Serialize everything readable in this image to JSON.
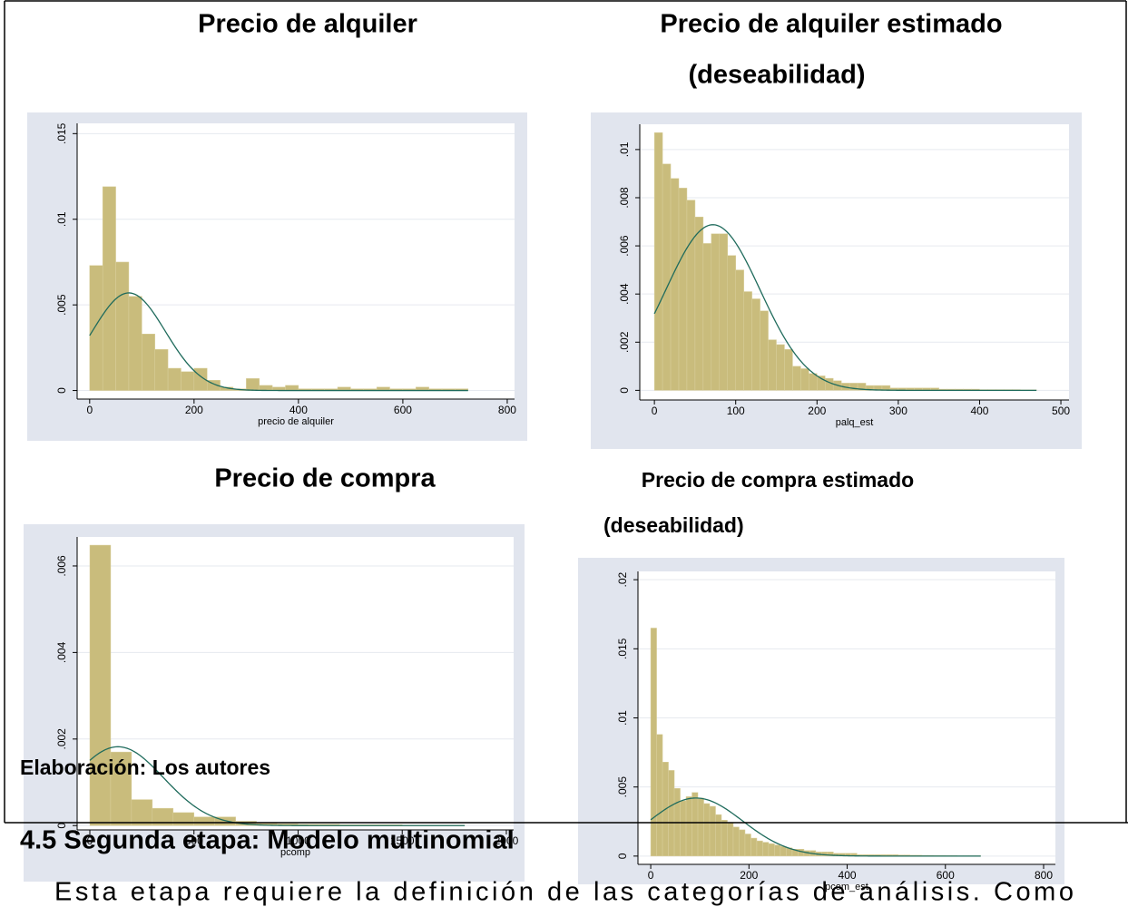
{
  "chart_data": [
    {
      "type": "histogram",
      "title": "Precio de alquiler",
      "xlabel": "precio de alquiler",
      "bins": [
        0,
        25,
        50,
        75,
        100,
        125,
        150,
        175,
        200,
        225,
        250,
        275,
        300,
        325,
        350,
        375,
        400,
        425,
        450,
        475,
        500,
        525,
        550,
        575,
        600,
        625,
        650,
        675,
        700,
        725
      ],
      "values": [
        0.0073,
        0.0119,
        0.0075,
        0.0055,
        0.0033,
        0.0024,
        0.0013,
        0.0011,
        0.0013,
        0.0006,
        0.0002,
        0.0001,
        0.0007,
        0.0003,
        0.0002,
        0.0003,
        0.0001,
        0.0001,
        0.0001,
        0.0002,
        0.0001,
        0.0001,
        0.0002,
        0.0001,
        0.0001,
        0.0002,
        0.0001,
        0.0001,
        0.0001
      ],
      "color": "#c9bc7c",
      "normal": {
        "mean": 75,
        "sd": 70,
        "color": "#1f6b5c"
      },
      "xlim": [
        -24,
        814
      ],
      "ylim": [
        -0.0005,
        0.0156
      ],
      "xticks": [
        0,
        200,
        400,
        600,
        800
      ],
      "yticks": [
        0,
        {
          "value": 0.005,
          "label": ".005"
        },
        {
          "value": 0.01,
          "label": ".01"
        },
        {
          "value": 0.015,
          "label": ".015"
        }
      ],
      "grid": true
    },
    {
      "type": "histogram",
      "title": "Precio de alquiler estimado",
      "subtitle": "(deseabilidad)",
      "xlabel": "palq_est",
      "bins": [
        0,
        10,
        20,
        30,
        40,
        50,
        60,
        70,
        80,
        90,
        100,
        110,
        120,
        130,
        140,
        150,
        160,
        170,
        180,
        190,
        200,
        210,
        220,
        230,
        240,
        250,
        260,
        270,
        280,
        290,
        300,
        310,
        320,
        330,
        340,
        350,
        360,
        370,
        380,
        390,
        400,
        410,
        420,
        430,
        440,
        450,
        460,
        470
      ],
      "values": [
        0.0107,
        0.0094,
        0.0088,
        0.0084,
        0.0079,
        0.0072,
        0.0061,
        0.0065,
        0.0065,
        0.0056,
        0.005,
        0.0041,
        0.0038,
        0.0033,
        0.0021,
        0.0019,
        0.0017,
        0.001,
        0.0009,
        0.0007,
        0.0006,
        0.0005,
        0.0004,
        0.0003,
        0.0003,
        0.0003,
        0.0002,
        0.0002,
        0.0002,
        0.0001,
        0.0001,
        0.0001,
        0.0001,
        0.0001,
        0.0001,
        5e-05,
        5e-05,
        5e-05,
        5e-05,
        5e-05,
        3e-05,
        3e-05,
        3e-05,
        3e-05,
        3e-05,
        2e-05,
        2e-05
      ],
      "color": "#c9bc7c",
      "normal": {
        "mean": 72,
        "sd": 58,
        "color": "#1f6b5c"
      },
      "xlim": [
        -18,
        510
      ],
      "ylim": [
        -0.0004,
        0.01105
      ],
      "xticks": [
        0,
        100,
        200,
        300,
        400,
        500
      ],
      "yticks": [
        0,
        {
          "value": 0.002,
          "label": ".002"
        },
        {
          "value": 0.004,
          "label": ".004"
        },
        {
          "value": 0.006,
          "label": ".006"
        },
        {
          "value": 0.008,
          "label": ".008"
        },
        {
          "value": 0.01,
          "label": ".01"
        }
      ],
      "grid": true
    },
    {
      "type": "histogram",
      "title": "Precio de compra",
      "xlabel": "pcomp",
      "bins": [
        0,
        100,
        200,
        300,
        400,
        500,
        600,
        700,
        800,
        900,
        1000,
        1100,
        1200,
        1300,
        1400,
        1500,
        1600,
        1700,
        1800
      ],
      "values": [
        0.00648,
        0.0017,
        0.0006,
        0.0004,
        0.0003,
        0.0002,
        0.0002,
        0.0001,
        5e-05,
        4e-05,
        3e-05,
        3e-05,
        2e-05,
        2e-05,
        2e-05,
        1e-05,
        1e-05,
        1e-05
      ],
      "color": "#c9bc7c",
      "normal": {
        "mean": 135,
        "sd": 219,
        "color": "#1f6b5c"
      },
      "xlim": [
        -61,
        2035
      ],
      "ylim": [
        -0.0001,
        0.00667
      ],
      "xticks": [
        0,
        500,
        1000,
        1500,
        2000
      ],
      "yticks": [
        0,
        {
          "value": 0.002,
          "label": ".002"
        },
        {
          "value": 0.004,
          "label": ".004"
        },
        {
          "value": 0.006,
          "label": ".006"
        }
      ],
      "grid": true
    },
    {
      "type": "histogram",
      "title": "Precio de compra estimado",
      "subtitle": "(deseabilidad)",
      "xlabel": "pcom_est",
      "bins": [
        0,
        12,
        24,
        36,
        48,
        60,
        72,
        84,
        96,
        108,
        120,
        132,
        144,
        156,
        168,
        180,
        192,
        204,
        216,
        228,
        240,
        252,
        264,
        276,
        288,
        300,
        312,
        324,
        336,
        348,
        360,
        372,
        384,
        396,
        408,
        420,
        432,
        444,
        456,
        468,
        480,
        492,
        504,
        516,
        528,
        540,
        552,
        564,
        576,
        588,
        600,
        612,
        624,
        636,
        648,
        660,
        672
      ],
      "values": [
        0.0165,
        0.0088,
        0.0068,
        0.0062,
        0.0049,
        0.004,
        0.0043,
        0.0046,
        0.0042,
        0.0038,
        0.0036,
        0.003,
        0.0026,
        0.0024,
        0.0021,
        0.0019,
        0.0016,
        0.0013,
        0.0011,
        0.001,
        0.0009,
        0.0008,
        0.0007,
        0.0006,
        0.0005,
        0.0005,
        0.0004,
        0.0004,
        0.0003,
        0.0003,
        0.0003,
        0.0002,
        0.0002,
        0.0002,
        0.0002,
        0.0001,
        0.0001,
        0.0001,
        0.0001,
        0.0001,
        0.0001,
        0.0001,
        8e-05,
        8e-05,
        6e-05,
        6e-05,
        5e-05,
        5e-05,
        4e-05,
        4e-05,
        3e-05,
        3e-05,
        2e-05,
        2e-05,
        2e-05,
        2e-05
      ],
      "color": "#c9bc7c",
      "normal": {
        "mean": 92,
        "sd": 95,
        "color": "#1f6b5c"
      },
      "xlim": [
        -26,
        824
      ],
      "ylim": [
        -0.0006,
        0.0206
      ],
      "xticks": [
        0,
        200,
        400,
        600,
        800
      ],
      "yticks": [
        0,
        {
          "value": 0.005,
          "label": ".005"
        },
        {
          "value": 0.01,
          "label": ".01"
        },
        {
          "value": 0.015,
          "label": ".015"
        },
        {
          "value": 0.02,
          "label": ".02"
        }
      ],
      "grid": true
    }
  ],
  "document": {
    "source": "Elaboración: Los autores",
    "heading": "4.5 Segunda etapa: Modelo multinomial",
    "paragraph": "Esta etapa requiere la definición de las categorías de análisis. Como"
  }
}
